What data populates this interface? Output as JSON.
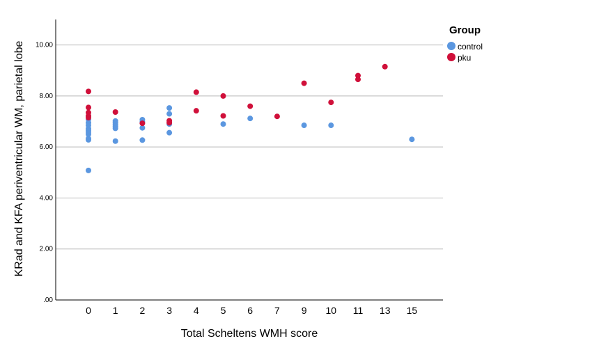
{
  "chart_data": {
    "type": "scatter",
    "title": "",
    "xlabel": "Total Scheltens WMH score",
    "ylabel": "KRad and KFA periventricular WM, parietal lobe",
    "categories": [
      "0",
      "1",
      "2",
      "3",
      "4",
      "5",
      "6",
      "7",
      "9",
      "10",
      "11",
      "13",
      "15"
    ],
    "ylim": [
      0,
      11
    ],
    "yticks": [
      ".00",
      "2.00",
      "4.00",
      "6.00",
      "8.00",
      "10.00"
    ],
    "grid": "horizontal",
    "legend_placement": "top-right",
    "legend_title": "Group",
    "series": [
      {
        "name": "control",
        "color": "#5b97e0",
        "points": [
          {
            "x": "0",
            "y": 5.08
          },
          {
            "x": "0",
            "y": 6.28
          },
          {
            "x": "0",
            "y": 6.33
          },
          {
            "x": "0",
            "y": 6.5
          },
          {
            "x": "0",
            "y": 6.58
          },
          {
            "x": "0",
            "y": 6.65
          },
          {
            "x": "0",
            "y": 6.72
          },
          {
            "x": "0",
            "y": 6.85
          },
          {
            "x": "0",
            "y": 6.95
          },
          {
            "x": "0",
            "y": 7.08
          },
          {
            "x": "0",
            "y": 7.2
          },
          {
            "x": "1",
            "y": 6.23
          },
          {
            "x": "1",
            "y": 6.73
          },
          {
            "x": "1",
            "y": 6.8
          },
          {
            "x": "1",
            "y": 6.88
          },
          {
            "x": "1",
            "y": 6.95
          },
          {
            "x": "1",
            "y": 7.02
          },
          {
            "x": "2",
            "y": 6.27
          },
          {
            "x": "2",
            "y": 6.75
          },
          {
            "x": "2",
            "y": 6.98
          },
          {
            "x": "2",
            "y": 7.07
          },
          {
            "x": "3",
            "y": 6.56
          },
          {
            "x": "3",
            "y": 6.9
          },
          {
            "x": "3",
            "y": 7.3
          },
          {
            "x": "3",
            "y": 7.53
          },
          {
            "x": "5",
            "y": 6.9
          },
          {
            "x": "6",
            "y": 7.12
          },
          {
            "x": "9",
            "y": 6.85
          },
          {
            "x": "10",
            "y": 6.85
          },
          {
            "x": "15",
            "y": 6.3
          }
        ]
      },
      {
        "name": "pku",
        "color": "#d0103a",
        "points": [
          {
            "x": "0",
            "y": 8.18
          },
          {
            "x": "0",
            "y": 7.55
          },
          {
            "x": "0",
            "y": 7.35
          },
          {
            "x": "0",
            "y": 7.22
          },
          {
            "x": "0",
            "y": 7.15
          },
          {
            "x": "1",
            "y": 7.37
          },
          {
            "x": "2",
            "y": 6.93
          },
          {
            "x": "3",
            "y": 6.95
          },
          {
            "x": "3",
            "y": 7.03
          },
          {
            "x": "4",
            "y": 8.15
          },
          {
            "x": "4",
            "y": 7.42
          },
          {
            "x": "5",
            "y": 8.0
          },
          {
            "x": "5",
            "y": 7.22
          },
          {
            "x": "6",
            "y": 7.6
          },
          {
            "x": "7",
            "y": 7.2
          },
          {
            "x": "9",
            "y": 8.5
          },
          {
            "x": "10",
            "y": 7.75
          },
          {
            "x": "11",
            "y": 8.8
          },
          {
            "x": "11",
            "y": 8.65
          },
          {
            "x": "13",
            "y": 9.15
          }
        ]
      }
    ]
  }
}
